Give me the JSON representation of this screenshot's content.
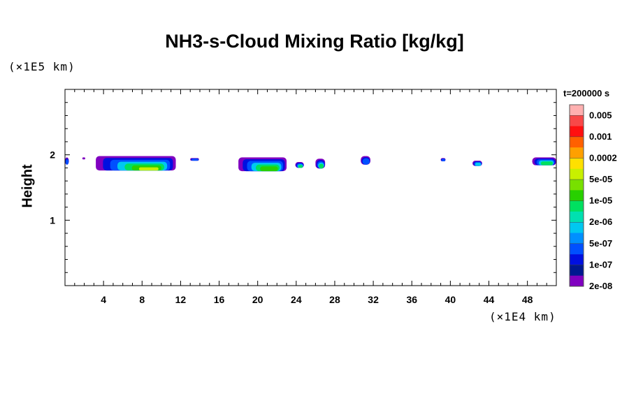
{
  "chart_data": {
    "type": "heatmap",
    "title": "NH3-s-Cloud Mixing Ratio [kg/kg]",
    "ylabel": "Height",
    "y_unit": "(×1E5 km)",
    "x_unit": "(×1E4 km)",
    "xlim": [
      0,
      51
    ],
    "ylim": [
      0,
      3
    ],
    "x_ticks": [
      4,
      8,
      12,
      16,
      20,
      24,
      28,
      32,
      36,
      40,
      44,
      48
    ],
    "y_ticks": [
      1,
      2
    ],
    "colorbar": {
      "title": "t=200000 s",
      "labels": [
        "0.005",
        "0.001",
        "0.0002",
        "5e-05",
        "1e-05",
        "2e-06",
        "5e-07",
        "1e-07",
        "2e-08"
      ],
      "colors": [
        "#ffb0b0",
        "#f84848",
        "#ff1010",
        "#ff6000",
        "#ffa000",
        "#ffe000",
        "#c8f000",
        "#78e000",
        "#28d000",
        "#00e060",
        "#00e0b0",
        "#00c8f0",
        "#0090ff",
        "#0050ff",
        "#0010e0",
        "#001890",
        "#8000c0"
      ]
    },
    "cloud_patches": [
      {
        "x": [
          0,
          0.4
        ],
        "y": [
          1.85,
          1.96
        ],
        "level": "1e-07"
      },
      {
        "x": [
          1.8,
          2.1
        ],
        "y": [
          1.93,
          1.96
        ],
        "level": "2e-08"
      },
      {
        "x": [
          3.2,
          11.5
        ],
        "y": [
          1.76,
          1.98
        ],
        "level": "5e-05"
      },
      {
        "x": [
          13.0,
          13.9
        ],
        "y": [
          1.91,
          1.95
        ],
        "level": "1e-07"
      },
      {
        "x": [
          18.0,
          23.0
        ],
        "y": [
          1.75,
          1.96
        ],
        "level": "1e-05"
      },
      {
        "x": [
          23.9,
          24.8
        ],
        "y": [
          1.8,
          1.89
        ],
        "level": "2e-06"
      },
      {
        "x": [
          26.0,
          27.0
        ],
        "y": [
          1.79,
          1.94
        ],
        "level": "2e-06"
      },
      {
        "x": [
          30.7,
          31.7
        ],
        "y": [
          1.85,
          1.98
        ],
        "level": "1e-07"
      },
      {
        "x": [
          39.0,
          39.5
        ],
        "y": [
          1.9,
          1.95
        ],
        "level": "1e-07"
      },
      {
        "x": [
          42.3,
          43.3
        ],
        "y": [
          1.83,
          1.91
        ],
        "level": "5e-07"
      },
      {
        "x": [
          48.5,
          51.0
        ],
        "y": [
          1.84,
          1.96
        ],
        "level": "2e-06"
      }
    ]
  }
}
